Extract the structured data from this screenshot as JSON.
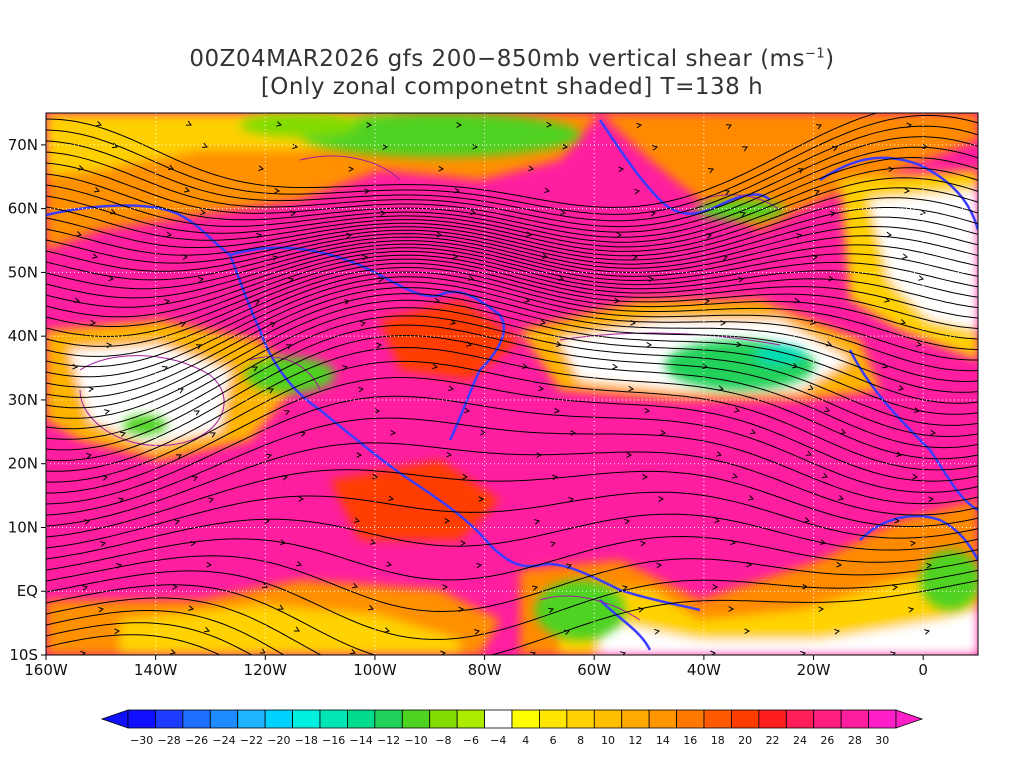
{
  "title": {
    "line1_prefix": "00Z04MAR2026 gfs 200−850mb vertical shear (ms",
    "line1_sup": "−1",
    "line1_suffix": ")",
    "line2": "[Only zonal componetnt shaded] T=138 h"
  },
  "axes": {
    "lat_labels": [
      "70N",
      "60N",
      "50N",
      "40N",
      "30N",
      "20N",
      "10N",
      "EQ",
      "10S"
    ],
    "lat_values": [
      70,
      60,
      50,
      40,
      30,
      20,
      10,
      0,
      -10
    ],
    "lon_labels": [
      "160W",
      "140W",
      "120W",
      "100W",
      "80W",
      "60W",
      "40W",
      "20W",
      "0"
    ],
    "lon_values": [
      -160,
      -140,
      -120,
      -100,
      -80,
      -60,
      -40,
      -20,
      0
    ],
    "lon_range": [
      -160,
      10
    ],
    "lat_range": [
      -10,
      75
    ]
  },
  "colorbar": {
    "labels": [
      "−30",
      "−28",
      "−26",
      "−24",
      "−22",
      "−20",
      "−18",
      "−16",
      "−14",
      "−12",
      "−10",
      "−8",
      "−6",
      "−4",
      "4",
      "6",
      "8",
      "10",
      "12",
      "14",
      "16",
      "18",
      "20",
      "22",
      "24",
      "26",
      "28",
      "30"
    ],
    "colors": [
      "#1010ff",
      "#1e3cff",
      "#1e6eff",
      "#1e8cff",
      "#1eb4ff",
      "#00d2ff",
      "#00f0e0",
      "#00e6b4",
      "#00dc8c",
      "#20d25a",
      "#50d220",
      "#82dc00",
      "#aaeb00",
      "#ffffff",
      "#ffff00",
      "#ffe600",
      "#ffd200",
      "#ffbe00",
      "#ffaa00",
      "#ff9600",
      "#ff7800",
      "#ff5a00",
      "#ff3c00",
      "#ff1e1e",
      "#ff1e5a",
      "#ff1e82",
      "#ff1ea0",
      "#ff1ec8"
    ]
  },
  "map_fill_colors": {
    "strong_shear": "#ff1ea0",
    "moderate_shear": "#ff7800",
    "weak_shear": "#ffd200",
    "calm": "#ffffff",
    "easterly_shear": "#50d220",
    "coastline": "#3c3cff",
    "streamline": "#000000",
    "contour": "#a020a0"
  }
}
